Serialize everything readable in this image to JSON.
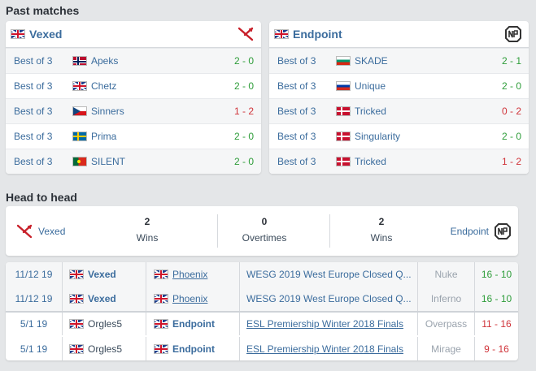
{
  "past_matches": {
    "title": "Past matches",
    "left": {
      "team": "Vexed",
      "rows": [
        {
          "format": "Best of 3",
          "opponent": "Apeks",
          "score": "2 - 0"
        },
        {
          "format": "Best of 3",
          "opponent": "Chetz",
          "score": "2 - 0"
        },
        {
          "format": "Best of 3",
          "opponent": "Sinners",
          "score": "1 - 2"
        },
        {
          "format": "Best of 3",
          "opponent": "Prima",
          "score": "2 - 0"
        },
        {
          "format": "Best of 3",
          "opponent": "SILENT",
          "score": "2 - 0"
        }
      ]
    },
    "right": {
      "team": "Endpoint",
      "rows": [
        {
          "format": "Best of 3",
          "opponent": "SKADE",
          "score": "2 - 1"
        },
        {
          "format": "Best of 3",
          "opponent": "Unique",
          "score": "2 - 0"
        },
        {
          "format": "Best of 3",
          "opponent": "Tricked",
          "score": "0 - 2"
        },
        {
          "format": "Best of 3",
          "opponent": "Singularity",
          "score": "2 - 0"
        },
        {
          "format": "Best of 3",
          "opponent": "Tricked",
          "score": "1 - 2"
        }
      ]
    }
  },
  "head_to_head": {
    "title": "Head to head",
    "team1": "Vexed",
    "team2": "Endpoint",
    "team1_wins": "2",
    "overtimes": "0",
    "team2_wins": "2",
    "wins_label": "Wins",
    "overtimes_label": "Overtimes"
  },
  "history": [
    {
      "date": "11/12 19",
      "team1": "Vexed",
      "team2": "Phoenix",
      "event": "WESG 2019 West Europe Closed Q...",
      "map": "Nuke",
      "result": "16 - 10"
    },
    {
      "date": "11/12 19",
      "team1": "Vexed",
      "team2": "Phoenix",
      "event": "WESG 2019 West Europe Closed Q...",
      "map": "Inferno",
      "result": "16 - 10"
    },
    {
      "date": "5/1 19",
      "team1": "Orgles5",
      "team2": "Endpoint",
      "event": "ESL Premiership Winter 2018 Finals",
      "map": "Overpass",
      "result": "11 - 16"
    },
    {
      "date": "5/1 19",
      "team1": "Orgles5",
      "team2": "Endpoint",
      "event": "ESL Premiership Winter 2018 Finals",
      "map": "Mirage",
      "result": "9 - 16"
    }
  ],
  "colors": {
    "win": "#2e9d3a",
    "lose": "#d0343a",
    "link": "#3b6c9d"
  },
  "icons": {
    "vexed_logo": "vexed-logo-icon",
    "endpoint_logo": "endpoint-logo-icon"
  }
}
